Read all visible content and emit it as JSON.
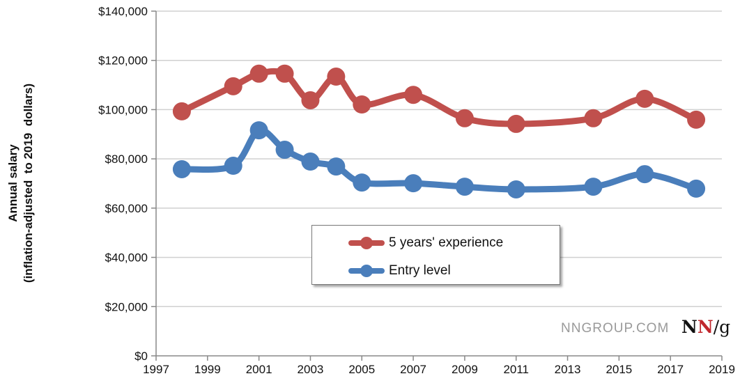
{
  "chart_data": {
    "type": "line",
    "title": "",
    "xlabel": "",
    "ylabel": [
      "Annual salary",
      "(inflation-adjusted  to 2019  dollars)"
    ],
    "xlim": [
      1997,
      2019
    ],
    "ylim": [
      0,
      140000
    ],
    "x_ticks": [
      "1997",
      "1999",
      "2001",
      "2003",
      "2005",
      "2007",
      "2009",
      "2011",
      "2013",
      "2015",
      "2017",
      "2019"
    ],
    "y_ticks": [
      "$0",
      "$20,000",
      "$40,000",
      "$60,000",
      "$80,000",
      "$100,000",
      "$120,000",
      "$140,000"
    ],
    "grid": true,
    "legend_position": "center",
    "series": [
      {
        "name": "5 years' experience",
        "color": "#c0504d",
        "x": [
          1998,
          2000,
          2001,
          2002,
          2003,
          2004,
          2005,
          2007,
          2009,
          2011,
          2014,
          2016,
          2018
        ],
        "values": [
          99300,
          109500,
          114600,
          114600,
          103800,
          113400,
          102100,
          106000,
          96500,
          94200,
          96500,
          104400,
          95900
        ]
      },
      {
        "name": "Entry level",
        "color": "#4a7ebb",
        "x": [
          1998,
          2000,
          2001,
          2002,
          2003,
          2004,
          2005,
          2007,
          2009,
          2011,
          2014,
          2016,
          2018
        ],
        "values": [
          75800,
          77200,
          91600,
          83700,
          78900,
          76900,
          70400,
          70100,
          68700,
          67600,
          68700,
          73800,
          67900
        ]
      }
    ]
  },
  "watermark": "NNGROUP.COM",
  "logo": {
    "n1": "N",
    "n2": "N",
    "g": "/g"
  }
}
